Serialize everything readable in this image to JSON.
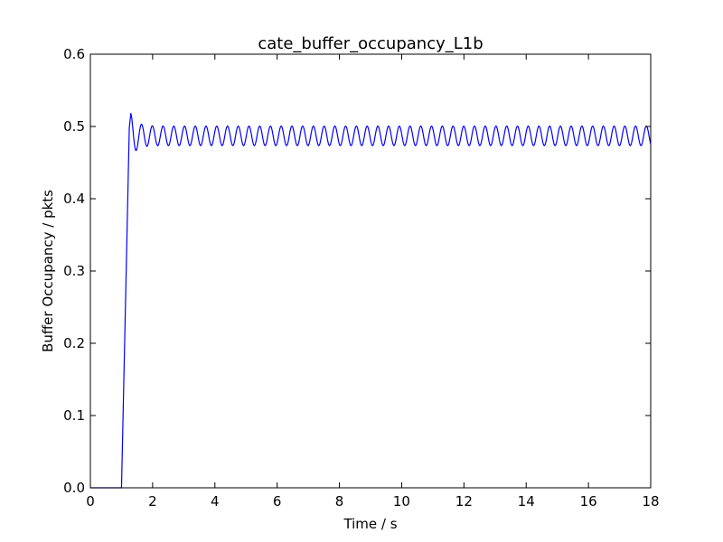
{
  "chart_data": {
    "type": "line",
    "title": "cate_buffer_occupancy_L1b",
    "xlabel": "Time / s",
    "ylabel": "Buffer Occupancy / pkts",
    "xlim": [
      0,
      18
    ],
    "ylim": [
      0,
      0.6
    ],
    "xticks": [
      0,
      2,
      4,
      6,
      8,
      10,
      12,
      14,
      16,
      18
    ],
    "yticks": [
      0.0,
      0.1,
      0.2,
      0.3,
      0.4,
      0.5,
      0.6
    ],
    "xtick_labels": [
      "0",
      "2",
      "4",
      "6",
      "8",
      "10",
      "12",
      "14",
      "16",
      "18"
    ],
    "ytick_labels": [
      "0.0",
      "0.1",
      "0.2",
      "0.3",
      "0.4",
      "0.5",
      "0.6"
    ],
    "grid": false,
    "series": [
      {
        "color": "#0000ff",
        "shape": {
          "baseline": 0.0,
          "baseline_until": 1.0,
          "rise_end": 1.25,
          "peak": 0.518,
          "peak_time": 1.3,
          "oscillation_center": 0.487,
          "oscillation_amplitude": 0.0135,
          "oscillation_period": 0.345,
          "end_time": 18.0
        }
      }
    ]
  }
}
